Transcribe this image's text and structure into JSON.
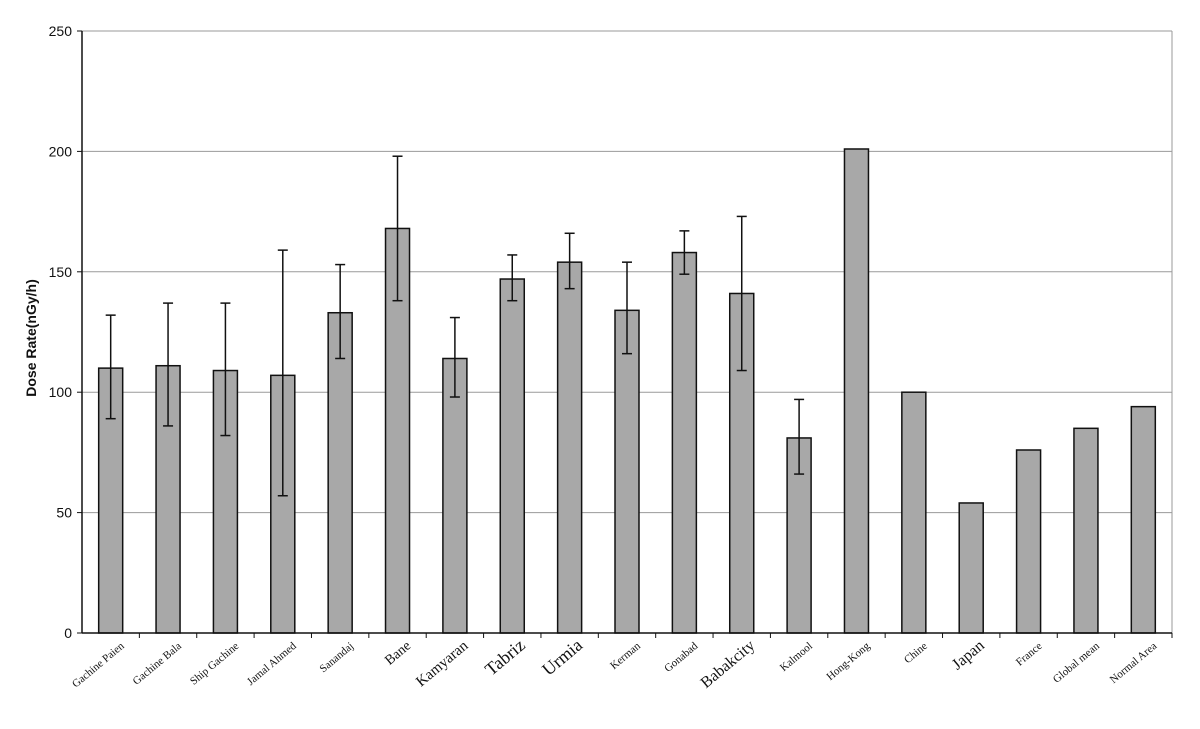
{
  "chart_data": {
    "type": "bar",
    "title": "",
    "xlabel": "",
    "ylabel": "Dose Rate(nGy/h)",
    "ylim": [
      0,
      250
    ],
    "yticks": [
      0,
      50,
      100,
      150,
      200,
      250
    ],
    "grid": "horizontal",
    "bar_color": "#a8a8a8",
    "categories": [
      "Gachine Paien",
      "Gachine Bala",
      "Ship Gachine",
      "Jamal Ahmed",
      "Sanandaj",
      "Bane",
      "Kamyaran",
      "Tabriz",
      "Urmia",
      "Kerman",
      "Gonabad",
      "Babakcity",
      "Kalmool",
      "Hong-Kong",
      "Chine",
      "Japan",
      "France",
      "Global mean",
      "Normal Area"
    ],
    "values": [
      110,
      111,
      109,
      107,
      133,
      168,
      114,
      147,
      154,
      134,
      158,
      141,
      81,
      201,
      100,
      54,
      76,
      85,
      94
    ],
    "error_low": [
      89,
      86,
      82,
      57,
      114,
      138,
      98,
      138,
      143,
      116,
      149,
      109,
      66,
      null,
      null,
      null,
      null,
      null,
      null
    ],
    "error_high": [
      132,
      137,
      137,
      159,
      153,
      198,
      131,
      157,
      166,
      154,
      167,
      173,
      97,
      null,
      null,
      null,
      null,
      null,
      null
    ]
  }
}
